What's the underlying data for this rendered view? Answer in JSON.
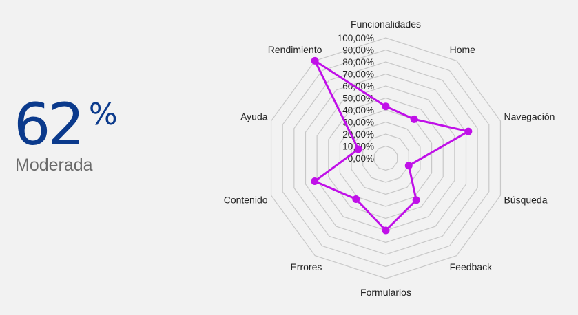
{
  "score": {
    "value": "62",
    "unit": "%",
    "label": "Moderada"
  },
  "colors": {
    "score": "#0b3a8c",
    "series": "#c010e8",
    "grid": "#c8c8c8",
    "background": "#f2f2f2"
  },
  "chart_data": {
    "type": "radar",
    "categories": [
      "Funcionalidades",
      "Home",
      "Navegación",
      "Búsqueda",
      "Feedback",
      "Formularios",
      "Errores",
      "Contenido",
      "Ayuda",
      "Rendimiento"
    ],
    "series": [
      {
        "values": [
          43,
          40,
          72,
          20,
          43,
          60,
          42,
          62,
          24,
          100
        ]
      }
    ],
    "rlim": [
      0,
      100
    ],
    "ticks": [
      "0,00%",
      "10,00%",
      "20,00%",
      "30,00%",
      "40,00%",
      "50,00%",
      "60,00%",
      "70,00%",
      "80,00%",
      "90,00%",
      "100,00%"
    ],
    "grid": true,
    "legend": "none"
  }
}
